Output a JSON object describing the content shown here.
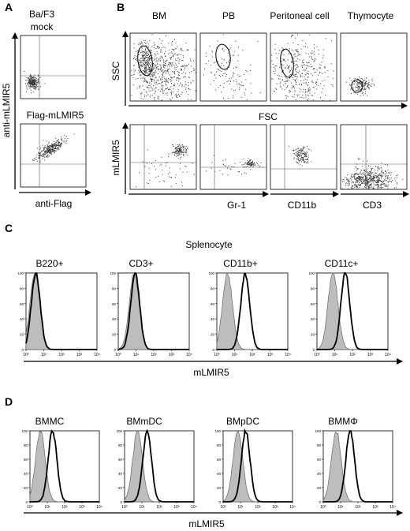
{
  "panels": {
    "A": {
      "letter": "A",
      "plots": [
        {
          "title_lines": [
            "Ba/F3",
            "mock"
          ]
        },
        {
          "title_lines": [
            "Flag-mLMIR5"
          ]
        }
      ],
      "ylabel": "anti-mLMIR5",
      "xlabel": "anti-Flag"
    },
    "B": {
      "letter": "B",
      "columns": [
        "BM",
        "PB",
        "Peritoneal cell",
        "Thymocyte"
      ],
      "top_ylabel": "SSC",
      "top_xlabel": "FSC",
      "bottom_ylabel": "mLMIR5",
      "bottom_xlabels": [
        "Gr-1",
        "CD11b",
        "CD3"
      ]
    },
    "C": {
      "letter": "C",
      "title": "Splenocyte",
      "plots": [
        "B220+",
        "CD3+",
        "CD11b+",
        "CD11c+"
      ],
      "xlabel": "mLMIR5",
      "yticks": [
        "100",
        "80",
        "60",
        "40",
        "20",
        "0"
      ],
      "xticks": [
        "10⁰",
        "10¹",
        "10²",
        "10³",
        "10⁴"
      ]
    },
    "D": {
      "letter": "D",
      "plots": [
        "BMMC",
        "BMmDC",
        "BMpDC",
        "BMMΦ"
      ],
      "xlabel": "mLMIR5",
      "yticks": [
        "100",
        "80",
        "60",
        "40",
        "20",
        "0"
      ],
      "xticks": [
        "10⁰",
        "10¹",
        "10²",
        "10³",
        "10⁴"
      ]
    }
  },
  "colors": {
    "ink": "#000000",
    "isotype_fill": "#bdbdbd",
    "dots": "#333333"
  },
  "chart_data": [
    {
      "type": "scatter",
      "name": "A-dotplots",
      "panels": [
        "Ba/F3 mock",
        "Flag-mLMIR5"
      ],
      "xlabel": "anti-Flag",
      "ylabel": "anti-mLMIR5",
      "description_values": {
        "mock_cluster": "low/low",
        "flag_cluster": "diagonal high"
      }
    },
    {
      "type": "histogram",
      "name": "C-splenocyte",
      "x_scale": "log",
      "xlim": [
        1,
        10000
      ],
      "ylim": [
        0,
        100
      ],
      "series": [
        {
          "plot": "B220+",
          "isotype_peak_log": 0.5,
          "stain_peak_log": 0.55,
          "stain_shift": "none"
        },
        {
          "plot": "CD3+",
          "isotype_peak_log": 0.9,
          "stain_peak_log": 0.95,
          "stain_shift": "none"
        },
        {
          "plot": "CD11b+",
          "isotype_peak_log": 0.6,
          "stain_peak_log": 1.6,
          "stain_shift": "positive"
        },
        {
          "plot": "CD11c+",
          "isotype_peak_log": 0.9,
          "stain_peak_log": 1.6,
          "stain_shift": "positive"
        }
      ]
    },
    {
      "type": "histogram",
      "name": "D-bone-marrow-derived",
      "x_scale": "log",
      "xlim": [
        1,
        10000
      ],
      "ylim": [
        0,
        100
      ],
      "series": [
        {
          "plot": "BMMC",
          "isotype_peak_log": 0.6,
          "stain_peak_log": 1.3,
          "stain_shift": "positive"
        },
        {
          "plot": "BMmDC",
          "isotype_peak_log": 0.75,
          "stain_peak_log": 1.3,
          "stain_shift": "positive"
        },
        {
          "plot": "BMpDC",
          "isotype_peak_log": 0.85,
          "stain_peak_log": 1.3,
          "stain_shift": "positive"
        },
        {
          "plot": "BMMΦ",
          "isotype_peak_log": 0.75,
          "stain_peak_log": 1.55,
          "stain_shift": "positive"
        }
      ]
    }
  ]
}
